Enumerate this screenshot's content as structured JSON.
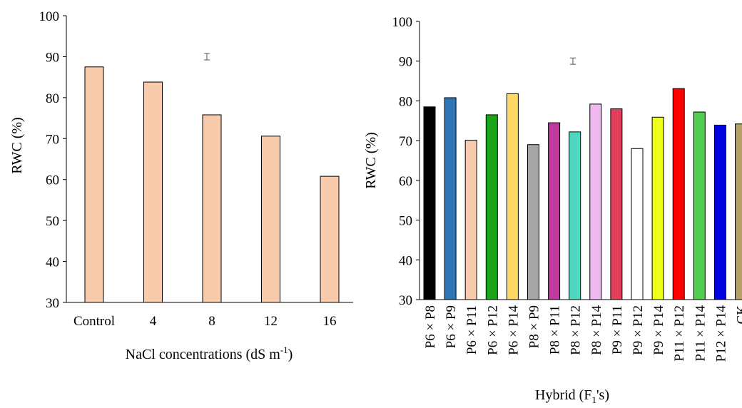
{
  "chart_data": [
    {
      "type": "bar",
      "xlabel_main": "NaCl concentrations (dS m",
      "xlabel_sup": "-1",
      "xlabel_tail": ")",
      "ylabel": "RWC (%)",
      "ylim": [
        30,
        100
      ],
      "yticks": [
        30,
        40,
        50,
        60,
        70,
        80,
        90,
        100
      ],
      "categories": [
        "Control",
        "4",
        "8",
        "12",
        "16"
      ],
      "values": [
        87.5,
        83.8,
        75.8,
        70.6,
        60.8
      ],
      "bar_color": "#f8cbad",
      "error_bar": {
        "center": 90,
        "half_range": 0.8
      }
    },
    {
      "type": "bar",
      "xlabel_main": "Hybrid (F",
      "xlabel_sub": "1",
      "xlabel_tail": "'s)",
      "ylabel": "RWC (%)",
      "ylim": [
        30,
        100
      ],
      "yticks": [
        30,
        40,
        50,
        60,
        70,
        80,
        90,
        100
      ],
      "categories": [
        "P6 × P8",
        "P6 × P9",
        "P6 × P11",
        "P6 × P12",
        "P6 × P14",
        "P8 × P9",
        "P8 × P11",
        "P8 × P12",
        "P8 × P14",
        "P9 × P11",
        "P9 × P12",
        "P9 × P14",
        "P11 × P12",
        "P11 × P14",
        "P12 × P14",
        "CK"
      ],
      "values": [
        78.5,
        80.8,
        70.1,
        76.5,
        81.8,
        69.0,
        74.5,
        72.2,
        79.2,
        78.0,
        68.0,
        75.9,
        83.1,
        77.2,
        73.9,
        74.2
      ],
      "bar_colors": [
        "#000000",
        "#2e75b6",
        "#f8cbad",
        "#1aa51a",
        "#ffd966",
        "#a6a6a6",
        "#c0399f",
        "#4ed8c0",
        "#f0b8f0",
        "#e0405a",
        "#ffffff",
        "#eeff1a",
        "#ff0000",
        "#4fd04f",
        "#0000e0",
        "#b5a06a"
      ],
      "error_bar": {
        "center": 90,
        "half_range": 0.8
      }
    }
  ]
}
